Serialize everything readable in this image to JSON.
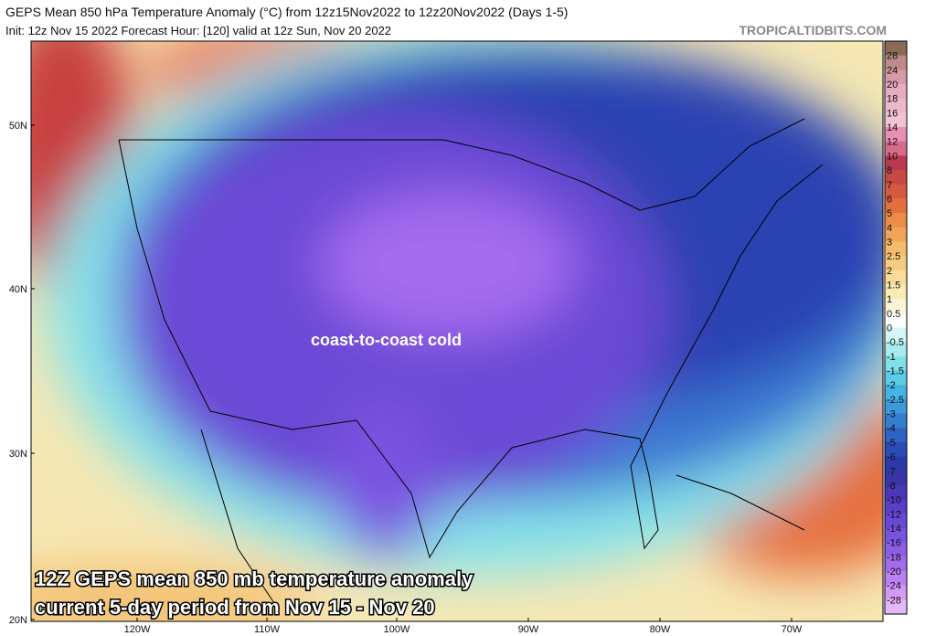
{
  "header": {
    "title": "GEPS Mean 850 hPa Temperature Anomaly (°C) from 12z15Nov2022 to 12z20Nov2022 (Days 1-5)",
    "subtitle": "Init: 12z Nov 15 2022   Forecast Hour: [120]   valid at 12z Sun, Nov 20 2022",
    "watermark": "TROPICALTIDBITS.COM"
  },
  "map": {
    "annotation": "coast-to-coast cold",
    "caption": [
      "12Z GEPS mean 850 mb temperature anomaly",
      "current 5-day period from Nov 15 - Nov 20"
    ],
    "lat_labels": [
      "50N",
      "40N",
      "30N",
      "20N"
    ],
    "lon_labels": [
      "120W",
      "110W",
      "100W",
      "90W",
      "80W",
      "70W"
    ]
  },
  "colorbar": {
    "labels": [
      28,
      24,
      20,
      18,
      16,
      14,
      12,
      10,
      8,
      7,
      6,
      5,
      4,
      3,
      2.5,
      2,
      1.5,
      1,
      0.5,
      0,
      -0.5,
      -1,
      -1.5,
      -2,
      -2.5,
      -3,
      -4,
      -5,
      -6,
      -7,
      -8,
      -10,
      -12,
      -14,
      -16,
      -18,
      -20,
      -24,
      -28
    ],
    "colors": [
      "#8a6a50",
      "#c08a8a",
      "#d89aa6",
      "#e6acc0",
      "#eeb8cc",
      "#f2c4d6",
      "#e890b4",
      "#d86a8e",
      "#b83a52",
      "#c44a44",
      "#d65a40",
      "#e2703e",
      "#ec8c48",
      "#f0a458",
      "#f4bc6c",
      "#f6cc80",
      "#f8dc98",
      "#faeab4",
      "#fcf4d4",
      "#ffffff",
      "#d4f6f6",
      "#a8ecee",
      "#80e0e8",
      "#5ccce6",
      "#44b4e2",
      "#3a9ada",
      "#347ed0",
      "#2e62c4",
      "#2a4cb8",
      "#2c3aa8",
      "#3a34a8",
      "#4a36b8",
      "#5a3ec8",
      "#6a48d6",
      "#7a52e0",
      "#8c5ee8",
      "#a26cee",
      "#bc80f2",
      "#d49af6",
      "#e4b8fa"
    ]
  }
}
